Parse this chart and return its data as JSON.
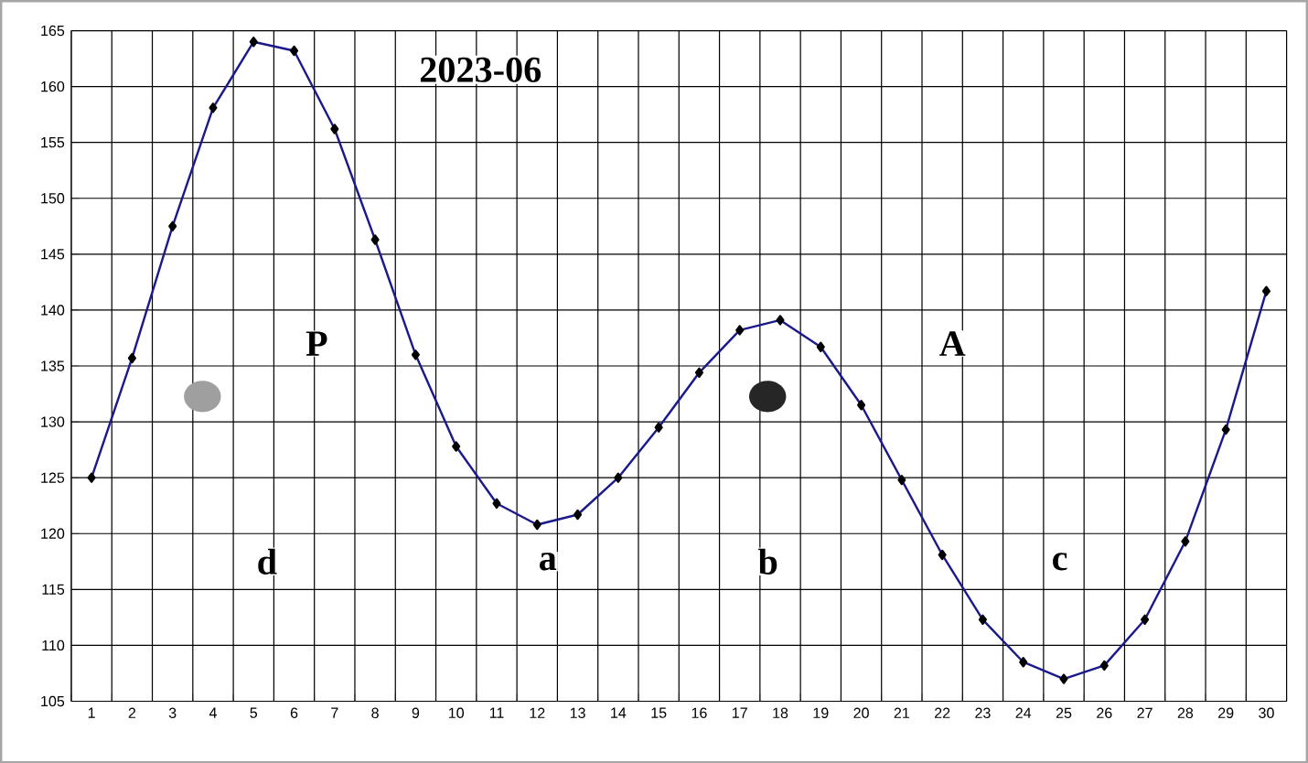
{
  "chart_data": {
    "type": "line",
    "title": "2023-06",
    "categories": [
      "1",
      "2",
      "3",
      "4",
      "5",
      "6",
      "7",
      "8",
      "9",
      "10",
      "11",
      "12",
      "13",
      "14",
      "15",
      "16",
      "17",
      "18",
      "19",
      "20",
      "21",
      "22",
      "23",
      "24",
      "25",
      "26",
      "27",
      "28",
      "29",
      "30"
    ],
    "values": [
      125,
      135.7,
      147.5,
      158.1,
      164,
      163.2,
      156.2,
      146.3,
      136,
      127.8,
      122.7,
      120.8,
      121.7,
      125,
      129.5,
      134.4,
      138.2,
      139.1,
      136.7,
      131.5,
      124.8,
      118.1,
      112.3,
      108.5,
      107,
      108.2,
      112.3,
      119.3,
      129.3,
      141.7
    ],
    "color": "#1a1a8c",
    "marker": "diamond",
    "line_style": "solid",
    "grid": true,
    "ylim": [
      105,
      165
    ],
    "yticks": [
      105,
      110,
      115,
      120,
      125,
      130,
      135,
      140,
      145,
      150,
      155,
      160,
      165
    ],
    "annotations": [
      "P",
      "A",
      "d",
      "a",
      "b",
      "c"
    ]
  }
}
